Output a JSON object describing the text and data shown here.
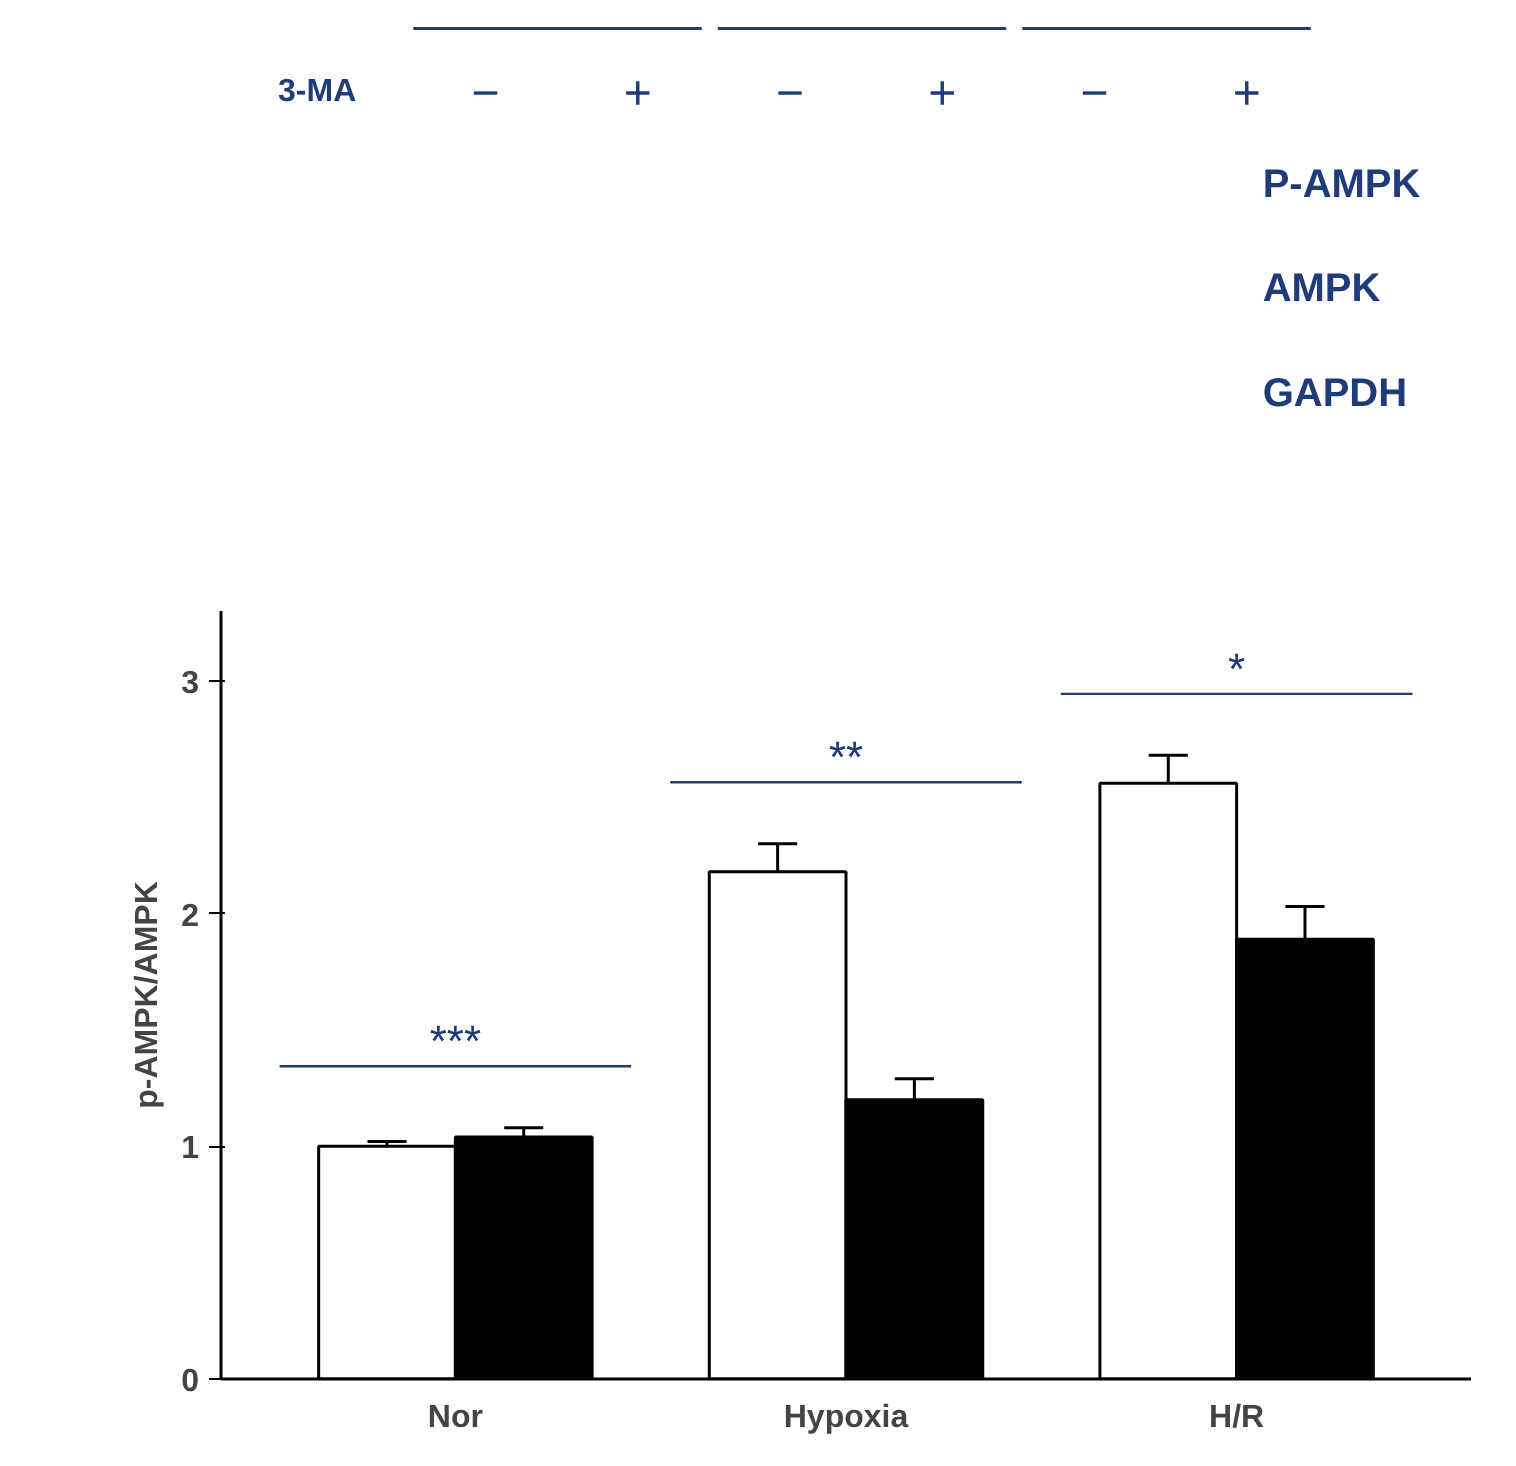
{
  "chart_data": {
    "type": "bar",
    "ylabel": "p-AMPK/AMPK",
    "categories": [
      "Nor",
      "Hypoxia",
      "H/R"
    ],
    "series": [
      {
        "color": "#ffffff",
        "values": [
          1.0,
          2.18,
          2.56
        ],
        "errors": [
          [
            1.0,
            1.02
          ],
          [
            2.18,
            2.3
          ],
          [
            2.56,
            2.68
          ]
        ]
      },
      {
        "color": "#000000",
        "values": [
          1.04,
          1.2,
          1.89
        ],
        "errors": [
          [
            1.04,
            1.08
          ],
          [
            1.2,
            1.29
          ],
          [
            1.89,
            2.03
          ]
        ]
      }
    ],
    "ylim": [
      0,
      3.3
    ],
    "yticks": [
      0,
      1,
      2,
      3
    ],
    "grid": false,
    "annotations": [
      "***",
      "**",
      "*",
      "3-MA",
      "−",
      "+",
      "−",
      "+",
      "−",
      "+",
      "P-AMPK",
      "AMPK",
      "GAPDH"
    ]
  }
}
